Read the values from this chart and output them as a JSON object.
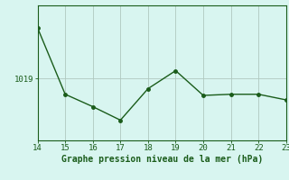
{
  "x": [
    14,
    15,
    16,
    17,
    18,
    19,
    20,
    21,
    22,
    23
  ],
  "y": [
    1023.5,
    1017.6,
    1016.5,
    1015.3,
    1018.1,
    1019.7,
    1017.5,
    1017.6,
    1017.6,
    1017.1
  ],
  "line_color": "#1a5c1a",
  "marker": "o",
  "marker_size": 2.5,
  "line_width": 1.0,
  "background_color": "#d8f5f0",
  "grid_color": "#b0c8c0",
  "xlabel": "Graphe pression niveau de la mer (hPa)",
  "xlabel_color": "#1a5c1a",
  "xlabel_fontsize": 7.0,
  "tick_color": "#1a5c1a",
  "tick_fontsize": 6.5,
  "ytick_label": "1019",
  "ytick_value": 1019.0,
  "xlim": [
    14.0,
    23.0
  ],
  "xgrid_positions": [
    14,
    15,
    16,
    17,
    18,
    19,
    20,
    21,
    22,
    23
  ],
  "ylim": [
    1013.5,
    1025.5
  ],
  "border_color": "#1a5c1a",
  "bottom_bar_color": "#1a5c1a"
}
